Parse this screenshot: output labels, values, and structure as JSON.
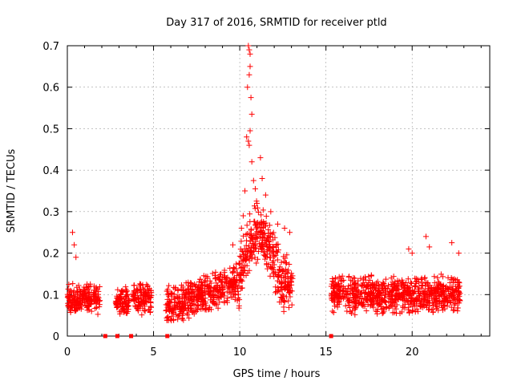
{
  "chart_data": {
    "type": "scatter",
    "title": "Day 317 of 2016, SRMTID for receiver ptld",
    "xlabel": "GPS time / hours",
    "ylabel": "SRMTID / TECUs",
    "xlim": [
      0,
      24.5
    ],
    "ylim": [
      0,
      0.7
    ],
    "xticks": [
      0,
      5,
      10,
      15,
      20
    ],
    "yticks": [
      0,
      0.1,
      0.2,
      0.3,
      0.4,
      0.5,
      0.6,
      0.7
    ],
    "x_tick_labels": [
      "0",
      "5",
      "10",
      "15",
      "20"
    ],
    "y_tick_labels": [
      "0",
      "0.1",
      "0.2",
      "0.3",
      "0.4",
      "0.5",
      "0.6",
      "0.7"
    ],
    "grid": true,
    "marker": "+",
    "series": [
      {
        "name": "SRMTID",
        "color": "#ff0000",
        "segments": [
          {
            "start": 0.0,
            "end": 1.9,
            "base": 0.09,
            "spread": 0.04
          },
          {
            "start": 2.8,
            "end": 3.6,
            "base": 0.085,
            "spread": 0.04
          },
          {
            "start": 3.8,
            "end": 4.9,
            "base": 0.09,
            "spread": 0.04
          },
          {
            "start": 5.7,
            "end": 9.9,
            "base": 0.09,
            "spread": 0.05
          },
          {
            "start": 9.9,
            "end": 13.1,
            "base": 0.2,
            "spread": 0.08
          },
          {
            "start": 15.3,
            "end": 22.8,
            "base": 0.1,
            "spread": 0.05
          }
        ],
        "points": [
          {
            "x": 0.3,
            "y": 0.25
          },
          {
            "x": 0.4,
            "y": 0.22
          },
          {
            "x": 0.5,
            "y": 0.19
          },
          {
            "x": 9.6,
            "y": 0.22
          },
          {
            "x": 10.1,
            "y": 0.26
          },
          {
            "x": 10.2,
            "y": 0.29
          },
          {
            "x": 10.3,
            "y": 0.35
          },
          {
            "x": 10.4,
            "y": 0.48
          },
          {
            "x": 10.45,
            "y": 0.6
          },
          {
            "x": 10.5,
            "y": 0.7
          },
          {
            "x": 10.55,
            "y": 0.69
          },
          {
            "x": 10.6,
            "y": 0.68
          },
          {
            "x": 10.6,
            "y": 0.65
          },
          {
            "x": 10.55,
            "y": 0.63
          },
          {
            "x": 10.65,
            "y": 0.575
          },
          {
            "x": 10.7,
            "y": 0.535
          },
          {
            "x": 10.6,
            "y": 0.495
          },
          {
            "x": 10.5,
            "y": 0.47
          },
          {
            "x": 10.55,
            "y": 0.46
          },
          {
            "x": 10.7,
            "y": 0.42
          },
          {
            "x": 10.8,
            "y": 0.375
          },
          {
            "x": 10.9,
            "y": 0.355
          },
          {
            "x": 11.0,
            "y": 0.32
          },
          {
            "x": 11.2,
            "y": 0.43
          },
          {
            "x": 11.3,
            "y": 0.38
          },
          {
            "x": 11.5,
            "y": 0.34
          },
          {
            "x": 11.8,
            "y": 0.3
          },
          {
            "x": 12.2,
            "y": 0.27
          },
          {
            "x": 12.6,
            "y": 0.26
          },
          {
            "x": 12.9,
            "y": 0.25
          },
          {
            "x": 19.8,
            "y": 0.21
          },
          {
            "x": 20.0,
            "y": 0.2
          },
          {
            "x": 20.8,
            "y": 0.24
          },
          {
            "x": 21.0,
            "y": 0.215
          },
          {
            "x": 22.3,
            "y": 0.225
          },
          {
            "x": 22.7,
            "y": 0.2
          }
        ],
        "zero_points": [
          2.2,
          2.9,
          3.7,
          5.8,
          15.3
        ]
      }
    ]
  }
}
